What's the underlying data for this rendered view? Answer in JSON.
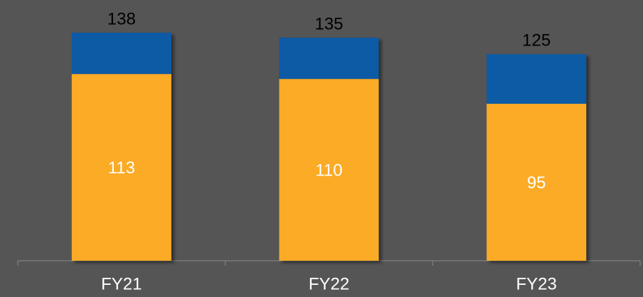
{
  "chart_data": {
    "type": "stacked_bar",
    "categories": [
      "FY21",
      "FY22",
      "FY23"
    ],
    "series": [
      {
        "color": "#fbab27",
        "values": [
          113,
          110,
          95
        ]
      },
      {
        "color": "#0a5aa5",
        "values": [
          25,
          25,
          30
        ]
      }
    ],
    "totals": [
      138,
      135,
      125
    ],
    "background": "#555555"
  }
}
